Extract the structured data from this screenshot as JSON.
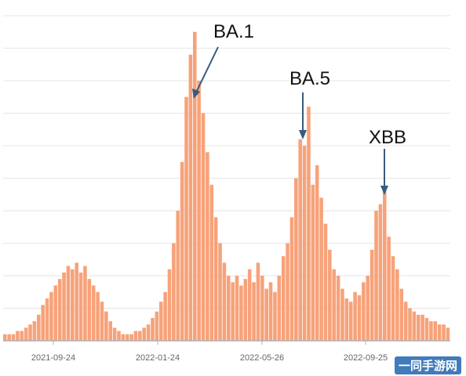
{
  "chart_data": {
    "type": "bar",
    "title": "",
    "xlabel": "",
    "ylabel": "",
    "x_tick_labels": [
      "2021-09-24",
      "2022-01-24",
      "2022-05-26",
      "2022-09-25"
    ],
    "ylim": [
      0,
      100
    ],
    "grid": "horizontal",
    "colors": {
      "bars": "#f7a27a",
      "baseline": "#b0b0b0",
      "grid": "#e6e6e6",
      "arrow": "#3a5a80"
    },
    "series": [
      {
        "values": [
          2,
          2,
          2,
          3,
          3,
          4,
          5,
          6,
          8,
          11,
          13,
          15,
          17,
          19,
          21,
          23,
          22,
          24,
          21,
          23,
          19,
          17,
          15,
          12,
          9,
          6,
          4,
          3,
          2,
          2,
          2,
          3,
          3,
          4,
          5,
          7,
          9,
          12,
          15,
          22,
          30,
          40,
          55,
          75,
          88,
          95,
          80,
          70,
          58,
          48,
          38,
          30,
          24,
          20,
          18,
          20,
          17,
          19,
          22,
          18,
          24,
          20,
          16,
          18,
          15,
          20,
          26,
          30,
          38,
          50,
          62,
          60,
          72,
          48,
          54,
          44,
          36,
          28,
          22,
          20,
          16,
          13,
          12,
          15,
          14,
          18,
          20,
          28,
          40,
          42,
          46,
          32,
          26,
          22,
          16,
          12,
          10,
          9,
          8,
          8,
          7,
          6,
          6,
          5,
          5,
          4
        ]
      }
    ],
    "annotations": [
      {
        "label": "BA.1",
        "x_label": "2022-02"
      },
      {
        "label": "BA.5",
        "x_label": "2022-06"
      },
      {
        "label": "XBB",
        "x_label": "2022-10"
      }
    ]
  },
  "watermark": "一同手游网"
}
